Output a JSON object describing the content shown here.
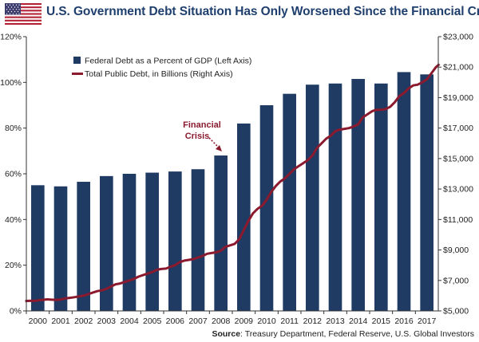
{
  "header": {
    "title": "U.S. Government Debt Situation Has Only Worsened Since the Financial Crisis",
    "flag_icon": "us-flag-icon"
  },
  "source": {
    "label": "Source",
    "text": ": Treasury Department, Federal Reserve, U.S. Global Investors"
  },
  "chart_data": {
    "type": "bar",
    "categories": [
      "2000",
      "2001",
      "2002",
      "2003",
      "2004",
      "2005",
      "2006",
      "2007",
      "2008",
      "2009",
      "2010",
      "2011",
      "2012",
      "2013",
      "2014",
      "2015",
      "2016",
      "2017"
    ],
    "series": [
      {
        "name": "Federal Debt as a Percent of GDP (Left Axis)",
        "type": "bar",
        "axis": "left",
        "color": "#1f3a63",
        "values": [
          55,
          54.5,
          56.5,
          59,
          60,
          60.5,
          61,
          62,
          68,
          82,
          90,
          95,
          99,
          99.5,
          101.5,
          99.5,
          104.5,
          103.5
        ]
      },
      {
        "name": "Total Public Debt, in Billions (Right Axis)",
        "type": "line",
        "axis": "right",
        "color": "#8b1a2f",
        "x": [
          1999.45,
          1999.6,
          1999.75,
          1999.9,
          2000.0,
          2000.2,
          2000.4,
          2000.6,
          2000.8,
          2001.0,
          2001.2,
          2001.4,
          2001.6,
          2001.8,
          2002.0,
          2002.2,
          2002.4,
          2002.6,
          2002.8,
          2003.0,
          2003.2,
          2003.4,
          2003.6,
          2003.8,
          2004.0,
          2004.2,
          2004.4,
          2004.6,
          2004.8,
          2005.0,
          2005.2,
          2005.4,
          2005.6,
          2005.8,
          2006.0,
          2006.2,
          2006.4,
          2006.6,
          2006.8,
          2007.0,
          2007.2,
          2007.4,
          2007.6,
          2007.8,
          2008.0,
          2008.2,
          2008.4,
          2008.6,
          2008.8,
          2009.0,
          2009.2,
          2009.4,
          2009.6,
          2009.8,
          2010.0,
          2010.2,
          2010.4,
          2010.6,
          2010.8,
          2011.0,
          2011.2,
          2011.4,
          2011.6,
          2011.8,
          2012.0,
          2012.2,
          2012.4,
          2012.6,
          2012.8,
          2013.0,
          2013.2,
          2013.4,
          2013.6,
          2013.8,
          2014.0,
          2014.2,
          2014.4,
          2014.6,
          2014.8,
          2015.0,
          2015.2,
          2015.4,
          2015.6,
          2015.8,
          2016.0,
          2016.2,
          2016.4,
          2016.6,
          2016.8,
          2017.0,
          2017.2,
          2017.4,
          2017.55
        ],
        "values": [
          5650,
          5660,
          5670,
          5660,
          5690,
          5720,
          5760,
          5740,
          5720,
          5750,
          5820,
          5860,
          5900,
          5950,
          6000,
          6100,
          6200,
          6300,
          6350,
          6450,
          6600,
          6750,
          6800,
          6900,
          7000,
          7100,
          7250,
          7350,
          7450,
          7550,
          7700,
          7750,
          7780,
          7900,
          8000,
          8200,
          8300,
          8350,
          8400,
          8500,
          8600,
          8750,
          8800,
          8850,
          8950,
          9200,
          9300,
          9400,
          9700,
          10300,
          10900,
          11400,
          11700,
          11900,
          12300,
          12800,
          13200,
          13500,
          13700,
          14000,
          14300,
          14500,
          14700,
          14900,
          15200,
          15700,
          16000,
          16300,
          16500,
          16800,
          16900,
          16950,
          17000,
          17100,
          17250,
          17700,
          17900,
          18100,
          18200,
          18200,
          18250,
          18400,
          18700,
          19100,
          19300,
          19600,
          19800,
          19850,
          20000,
          20200,
          20600,
          21000,
          21200
        ],
        "annotation": {
          "text_line1": "Financial",
          "text_line2": "Crisis"
        }
      }
    ],
    "left_axis": {
      "min": 0,
      "max": 120,
      "ticks": [
        "0%",
        "20%",
        "40%",
        "60%",
        "80%",
        "100%",
        "120%"
      ]
    },
    "right_axis": {
      "min": 5000,
      "max": 23000,
      "ticks": [
        "$5,000",
        "$7,000",
        "$9,000",
        "$11,000",
        "$13,000",
        "$15,000",
        "$17,000",
        "$19,000",
        "$21,000",
        "$23,000"
      ]
    },
    "legend_position": "top-left",
    "grid": false
  }
}
